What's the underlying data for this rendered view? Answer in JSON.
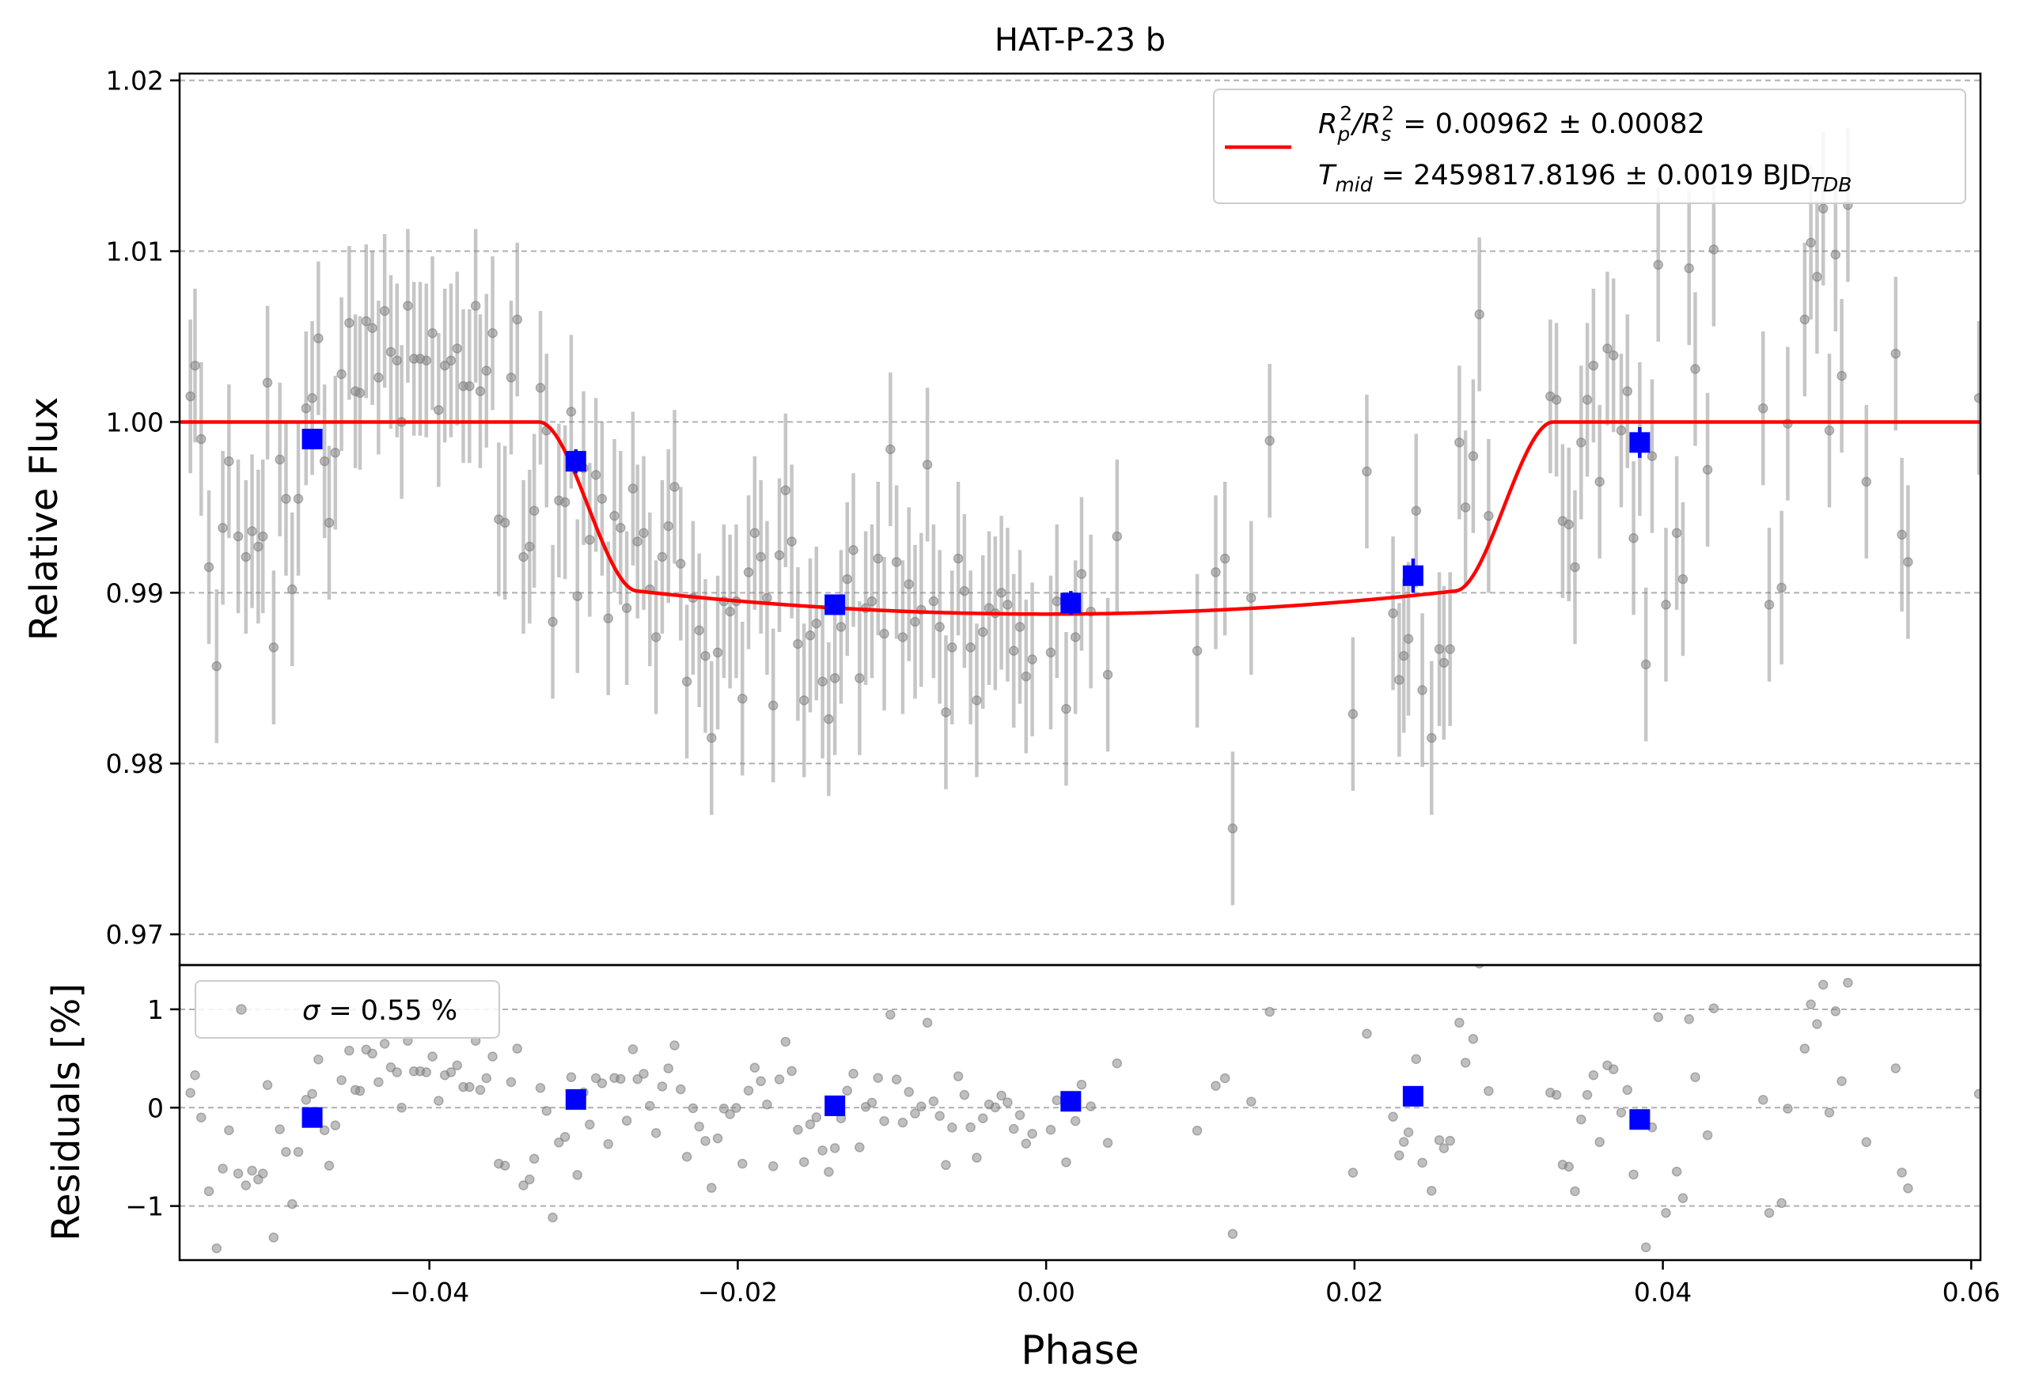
{
  "chart_data": {
    "type": "scatter",
    "title": "HAT-P-23 b",
    "xlabel": "Phase",
    "top_panel": {
      "ylabel": "Relative Flux",
      "ylim": [
        0.9682,
        1.0204
      ],
      "yticks": [
        "0.97",
        "0.98",
        "0.99",
        "1.00",
        "1.01",
        "1.02"
      ],
      "ytick_values": [
        0.97,
        0.98,
        0.99,
        1.0,
        1.01,
        1.02
      ],
      "grid": true,
      "legend_placement": "upper-right",
      "legend": {
        "line1": "R_p^2/R_s^2 = 0.00962 ± 0.00082",
        "line2": "T_mid = 2459817.8196 ± 0.0019 BJD_TDB",
        "line1_parts": {
          "r": "R",
          "p": "p",
          "sup1": "2",
          "slash": "/",
          "s": "s",
          "sup2": "2",
          "rest": " = 0.00962 ± 0.00082"
        },
        "line2_parts": {
          "t": "T",
          "mid": "mid",
          "rest": " = 2459817.8196 ± 0.0019 BJD",
          "tdb": "TDB"
        }
      },
      "model": {
        "color": "#ff0000",
        "depth": 0.01125,
        "t1": -0.0329,
        "t2": -0.0265,
        "t3": 0.0265,
        "t4": 0.0329
      },
      "binned": {
        "color": "#0000ff",
        "x": [
          -0.0476,
          -0.0305,
          -0.0137,
          0.0016,
          0.0238,
          0.0385
        ],
        "y": [
          0.999,
          0.9977,
          0.9893,
          0.9894,
          0.991,
          0.9988
        ],
        "err": [
          0.0006,
          0.0007,
          0.0005,
          0.0007,
          0.001,
          0.0009
        ]
      },
      "raw": {
        "color": "#808080",
        "err": 0.0045,
        "points": [
          [
            -0.0555,
            1.0015
          ],
          [
            -0.0552,
            1.0033
          ],
          [
            -0.0548,
            0.999
          ],
          [
            -0.0543,
            0.9915
          ],
          [
            -0.0538,
            0.9857
          ],
          [
            -0.0534,
            0.9938
          ],
          [
            -0.053,
            0.9977
          ],
          [
            -0.0524,
            0.9933
          ],
          [
            -0.0519,
            0.9921
          ],
          [
            -0.0515,
            0.9936
          ],
          [
            -0.0511,
            0.9927
          ],
          [
            -0.0508,
            0.9933
          ],
          [
            -0.0505,
            1.0023
          ],
          [
            -0.0501,
            0.9868
          ],
          [
            -0.0497,
            0.9978
          ],
          [
            -0.0493,
            0.9955
          ],
          [
            -0.0489,
            0.9902
          ],
          [
            -0.0485,
            0.9955
          ],
          [
            -0.048,
            1.0008
          ],
          [
            -0.0476,
            1.0014
          ],
          [
            -0.0472,
            1.0049
          ],
          [
            -0.0468,
            0.9977
          ],
          [
            -0.0465,
            0.9941
          ],
          [
            -0.0461,
            0.9982
          ],
          [
            -0.0457,
            1.0028
          ],
          [
            -0.0452,
            1.0058
          ],
          [
            -0.0448,
            1.0018
          ],
          [
            -0.0445,
            1.0017
          ],
          [
            -0.0441,
            1.0059
          ],
          [
            -0.0437,
            1.0055
          ],
          [
            -0.0433,
            1.0026
          ],
          [
            -0.0429,
            1.0065
          ],
          [
            -0.0425,
            1.0041
          ],
          [
            -0.0421,
            1.0036
          ],
          [
            -0.0418,
            1.0
          ],
          [
            -0.0414,
            1.0068
          ],
          [
            -0.041,
            1.0037
          ],
          [
            -0.0406,
            1.0037
          ],
          [
            -0.0402,
            1.0036
          ],
          [
            -0.0398,
            1.0052
          ],
          [
            -0.0394,
            1.0007
          ],
          [
            -0.039,
            1.0033
          ],
          [
            -0.0386,
            1.0036
          ],
          [
            -0.0382,
            1.0043
          ],
          [
            -0.0378,
            1.0021
          ],
          [
            -0.0374,
            1.0021
          ],
          [
            -0.037,
            1.0068
          ],
          [
            -0.0367,
            1.0018
          ],
          [
            -0.0363,
            1.003
          ],
          [
            -0.0359,
            1.0052
          ],
          [
            -0.0355,
            0.9943
          ],
          [
            -0.0351,
            0.9941
          ],
          [
            -0.0347,
            1.0026
          ],
          [
            -0.0343,
            1.006
          ],
          [
            -0.0339,
            0.9921
          ],
          [
            -0.0335,
            0.9927
          ],
          [
            -0.0332,
            0.9948
          ],
          [
            -0.0328,
            1.002
          ],
          [
            -0.0324,
            0.9995
          ],
          [
            -0.032,
            0.9883
          ],
          [
            -0.0316,
            0.9954
          ],
          [
            -0.0312,
            0.9953
          ],
          [
            -0.0308,
            1.0006
          ],
          [
            -0.0304,
            0.9898
          ],
          [
            -0.03,
            0.9973
          ],
          [
            -0.0296,
            0.9931
          ],
          [
            -0.0292,
            0.9969
          ],
          [
            -0.0288,
            0.9955
          ],
          [
            -0.0284,
            0.9885
          ],
          [
            -0.028,
            0.9945
          ],
          [
            -0.0276,
            0.9938
          ],
          [
            -0.0272,
            0.9891
          ],
          [
            -0.0268,
            0.9961
          ],
          [
            -0.0265,
            0.993
          ],
          [
            -0.0261,
            0.9935
          ],
          [
            -0.0257,
            0.9902
          ],
          [
            -0.0253,
            0.9874
          ],
          [
            -0.0249,
            0.9921
          ],
          [
            -0.0245,
            0.9939
          ],
          [
            -0.0241,
            0.9962
          ],
          [
            -0.0237,
            0.9917
          ],
          [
            -0.0233,
            0.9848
          ],
          [
            -0.0229,
            0.9897
          ],
          [
            -0.0225,
            0.9878
          ],
          [
            -0.0221,
            0.9863
          ],
          [
            -0.0217,
            0.9815
          ],
          [
            -0.0213,
            0.9865
          ],
          [
            -0.0209,
            0.9895
          ],
          [
            -0.0205,
            0.9889
          ],
          [
            -0.0201,
            0.9895
          ],
          [
            -0.0197,
            0.9838
          ],
          [
            -0.0193,
            0.9912
          ],
          [
            -0.0189,
            0.9935
          ],
          [
            -0.0185,
            0.9921
          ],
          [
            -0.0181,
            0.9897
          ],
          [
            -0.0177,
            0.9834
          ],
          [
            -0.0173,
            0.9922
          ],
          [
            -0.0169,
            0.996
          ],
          [
            -0.0165,
            0.993
          ],
          [
            -0.0161,
            0.987
          ],
          [
            -0.0157,
            0.9837
          ],
          [
            -0.0153,
            0.9875
          ],
          [
            -0.0149,
            0.9882
          ],
          [
            -0.0145,
            0.9848
          ],
          [
            -0.0141,
            0.9826
          ],
          [
            -0.0137,
            0.985
          ],
          [
            -0.0133,
            0.988
          ],
          [
            -0.0129,
            0.9908
          ],
          [
            -0.0125,
            0.9925
          ],
          [
            -0.0121,
            0.985
          ],
          [
            -0.0117,
            0.9891
          ],
          [
            -0.0113,
            0.9895
          ],
          [
            -0.0109,
            0.992
          ],
          [
            -0.0105,
            0.9876
          ],
          [
            -0.0101,
            0.9984
          ],
          [
            -0.0097,
            0.9918
          ],
          [
            -0.0093,
            0.9874
          ],
          [
            -0.0089,
            0.9905
          ],
          [
            -0.0085,
            0.9883
          ],
          [
            -0.0081,
            0.989
          ],
          [
            -0.0077,
            0.9975
          ],
          [
            -0.0073,
            0.9895
          ],
          [
            -0.0069,
            0.988
          ],
          [
            -0.0065,
            0.983
          ],
          [
            -0.0061,
            0.9868
          ],
          [
            -0.0057,
            0.992
          ],
          [
            -0.0053,
            0.9901
          ],
          [
            -0.0049,
            0.9868
          ],
          [
            -0.0045,
            0.9837
          ],
          [
            -0.0041,
            0.9877
          ],
          [
            -0.0037,
            0.9891
          ],
          [
            -0.0033,
            0.9888
          ],
          [
            -0.0029,
            0.99
          ],
          [
            -0.0025,
            0.9893
          ],
          [
            -0.0021,
            0.9866
          ],
          [
            -0.0017,
            0.988
          ],
          [
            -0.0013,
            0.9851
          ],
          [
            -0.0009,
            0.9861
          ],
          [
            0.0003,
            0.9865
          ],
          [
            0.0007,
            0.9895
          ],
          [
            0.0013,
            0.9832
          ],
          [
            0.0019,
            0.9874
          ],
          [
            0.0023,
            0.9911
          ],
          [
            0.0029,
            0.9889
          ],
          [
            0.004,
            0.9852
          ],
          [
            0.0046,
            0.9933
          ],
          [
            0.0098,
            0.9866
          ],
          [
            0.011,
            0.9912
          ],
          [
            0.0116,
            0.992
          ],
          [
            0.0121,
            0.9762
          ],
          [
            0.0133,
            0.9897
          ],
          [
            0.0145,
            0.9989
          ],
          [
            0.0199,
            0.9829
          ],
          [
            0.0208,
            0.9971
          ],
          [
            0.0225,
            0.9888
          ],
          [
            0.0229,
            0.9849
          ],
          [
            0.0232,
            0.9863
          ],
          [
            0.0235,
            0.9873
          ],
          [
            0.024,
            0.9948
          ],
          [
            0.0244,
            0.9843
          ],
          [
            0.025,
            0.9815
          ],
          [
            0.0255,
            0.9867
          ],
          [
            0.0258,
            0.9859
          ],
          [
            0.0262,
            0.9867
          ],
          [
            0.0268,
            0.9988
          ],
          [
            0.0272,
            0.995
          ],
          [
            0.0277,
            0.998
          ],
          [
            0.0281,
            1.0063
          ],
          [
            0.0287,
            0.9945
          ],
          [
            0.0327,
            1.0015
          ],
          [
            0.0331,
            1.0013
          ],
          [
            0.0335,
            0.9942
          ],
          [
            0.0339,
            0.994
          ],
          [
            0.0343,
            0.9915
          ],
          [
            0.0347,
            0.9988
          ],
          [
            0.0351,
            1.0013
          ],
          [
            0.0355,
            1.0033
          ],
          [
            0.0359,
            0.9965
          ],
          [
            0.0364,
            1.0043
          ],
          [
            0.0368,
            1.0039
          ],
          [
            0.0373,
            0.9995
          ],
          [
            0.0377,
            1.0018
          ],
          [
            0.0381,
            0.9932
          ],
          [
            0.0385,
            0.999
          ],
          [
            0.0389,
            0.9858
          ],
          [
            0.0393,
            0.998
          ],
          [
            0.0397,
            1.0092
          ],
          [
            0.0402,
            0.9893
          ],
          [
            0.0409,
            0.9935
          ],
          [
            0.0413,
            0.9908
          ],
          [
            0.0417,
            1.009
          ],
          [
            0.0421,
            1.0031
          ],
          [
            0.0429,
            0.9972
          ],
          [
            0.0433,
            1.0101
          ],
          [
            0.0465,
            1.0008
          ],
          [
            0.0469,
            0.9893
          ],
          [
            0.0477,
            0.9903
          ],
          [
            0.0481,
            0.9999
          ],
          [
            0.0492,
            1.006
          ],
          [
            0.0496,
            1.0105
          ],
          [
            0.05,
            1.0085
          ],
          [
            0.0504,
            1.0125
          ],
          [
            0.0508,
            0.9995
          ],
          [
            0.0512,
            1.0098
          ],
          [
            0.0516,
            1.0027
          ],
          [
            0.052,
            1.0127
          ],
          [
            0.0532,
            0.9965
          ],
          [
            0.0551,
            1.004
          ],
          [
            0.0555,
            0.9934
          ],
          [
            0.0559,
            0.9918
          ],
          [
            0.0605,
            1.0014
          ]
        ]
      }
    },
    "bottom_panel": {
      "ylabel": "Residuals [%]",
      "ylim": [
        -1.55,
        1.45
      ],
      "yticks": [
        "−1",
        "0",
        "1"
      ],
      "ytick_values": [
        -1,
        0,
        1
      ],
      "grid": true,
      "legend_placement": "upper-left",
      "legend": {
        "sigma_symbol": "σ",
        "text": " = 0.55 %"
      }
    },
    "xlim": [
      -0.0562,
      0.0606
    ],
    "xticks": [
      "−0.04",
      "−0.02",
      "0.00",
      "0.02",
      "0.04",
      "0.06"
    ],
    "xtick_values": [
      -0.04,
      -0.02,
      0.0,
      0.02,
      0.04,
      0.06
    ]
  }
}
